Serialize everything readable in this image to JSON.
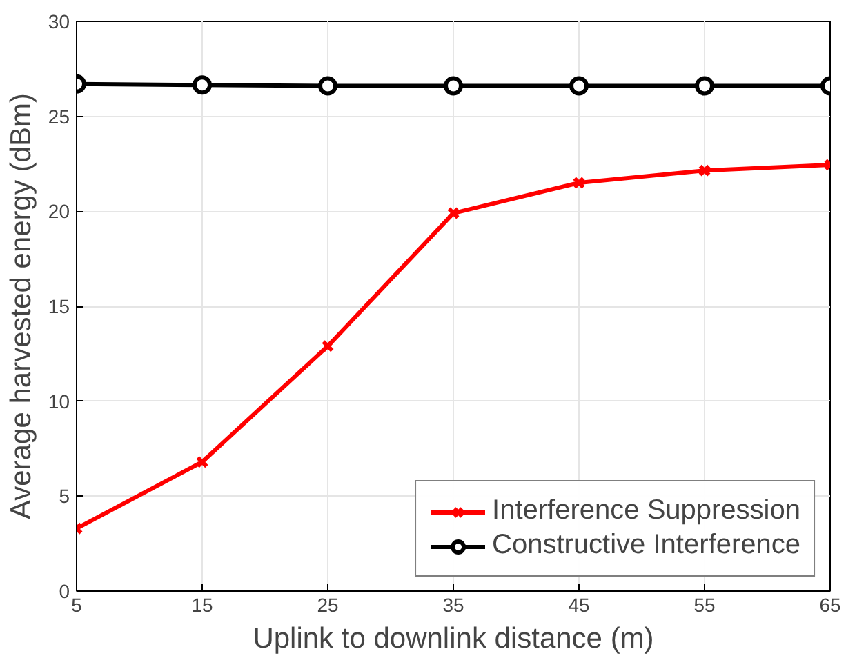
{
  "chart_data": {
    "type": "line",
    "xlabel": "Uplink to downlink distance (m)",
    "ylabel": "Average harvested energy (dBm)",
    "x": [
      5,
      15,
      25,
      35,
      45,
      55,
      65
    ],
    "series": [
      {
        "name": "Interference Suppression",
        "color": "#ff0000",
        "marker": "cross",
        "values": [
          3.3,
          6.8,
          12.9,
          19.9,
          21.5,
          22.15,
          22.45
        ]
      },
      {
        "name": "Constructive Interference",
        "color": "#000000",
        "marker": "circle",
        "values": [
          26.7,
          26.65,
          26.6,
          26.6,
          26.6,
          26.6,
          26.6
        ]
      }
    ],
    "xlim": [
      5,
      65
    ],
    "ylim": [
      0,
      30
    ],
    "xticks": [
      5,
      15,
      25,
      35,
      45,
      55,
      65
    ],
    "yticks": [
      0,
      5,
      10,
      15,
      20,
      25,
      30
    ],
    "grid": true,
    "legend": "bottom right",
    "line_style": "solid"
  }
}
